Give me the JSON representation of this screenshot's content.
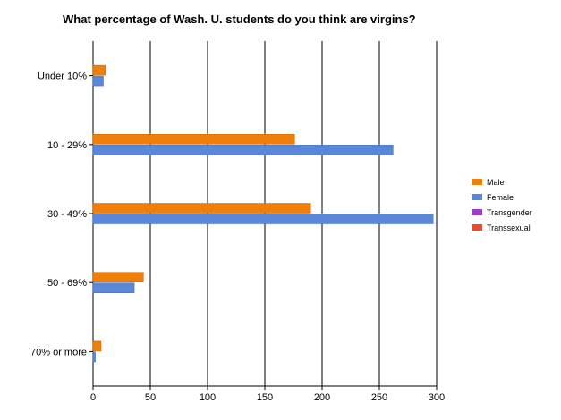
{
  "chart_data": {
    "type": "bar",
    "orientation": "horizontal",
    "title": "What percentage of Wash. U. students do you think are virgins?",
    "categories": [
      "Under 10%",
      "10 - 29%",
      "30 - 49%",
      "50 - 69%",
      "70% or more"
    ],
    "series": [
      {
        "name": "Male",
        "color": "#f07f09",
        "values": [
          11,
          176,
          190,
          44,
          7
        ]
      },
      {
        "name": "Female",
        "color": "#5b87d8",
        "values": [
          9,
          262,
          297,
          36,
          2
        ]
      },
      {
        "name": "Transgender",
        "color": "#9b3fbf",
        "values": [
          0,
          0,
          0,
          0,
          0
        ]
      },
      {
        "name": "Transsexual",
        "color": "#e84b2e",
        "values": [
          0,
          0,
          0,
          0,
          0
        ]
      }
    ],
    "xlim": [
      0,
      300
    ],
    "xticks": [
      0,
      50,
      100,
      150,
      200,
      250,
      300
    ],
    "grid": "vertical",
    "legend_position": "right"
  }
}
